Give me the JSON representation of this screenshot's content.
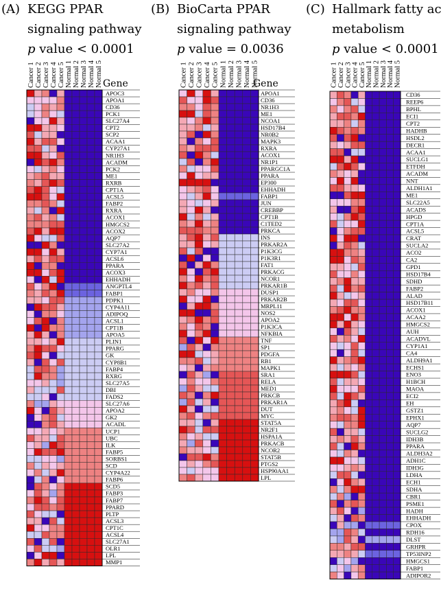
{
  "chart_data": [
    {
      "type": "heatmap",
      "panel": "(A)",
      "title_lines": [
        "KEGG PPAR",
        "signaling pathway"
      ],
      "pvalue_italic": "p",
      "pvalue_text": " value < 0.0001",
      "columns": [
        "Cancer 1",
        "Cancer 2",
        "Cancer 3",
        "Cancer 4",
        "Cancer 5",
        "Normal 1",
        "Normal 2",
        "Normal 3",
        "Normal 4",
        "Normal 5"
      ],
      "gene_header": "Gene",
      "genes": [
        "APOC3",
        "APOA1",
        "CD36",
        "PCK1",
        "SLC27A4",
        "CPT2",
        "SCP2",
        "ACAA1",
        "CYP27A1",
        "NR1H3",
        "ACADM",
        "PCK2",
        "ME1",
        "RXRB",
        "CPT1A",
        "ACSL5",
        "FABP2",
        "RXRA",
        "ACOX1",
        "HMGCS2",
        "ACOX2",
        "AQP7",
        "SLC27A2",
        "CYP7A1",
        "ACSL6",
        "PPARA",
        "ACOX3",
        "EHHADH",
        "ANGPTL4",
        "FABP1",
        "PDPK1",
        "CYP4A11",
        "ADIPOQ",
        "ACSL1",
        "CPT1B",
        "APOA5",
        "PLIN1",
        "PPARG",
        "GK",
        "CYP8B1",
        "FABP4",
        "RXRG",
        "SLC27A5",
        "DBI",
        "FADS2",
        "SLC27A6",
        "APOA2",
        "GK2",
        "ACADL",
        "UCP1",
        "UBC",
        "ILK",
        "FABP5",
        "SORBS1",
        "SCD",
        "CYP4A22",
        "FABP6",
        "SCD5",
        "FABP3",
        "FABP7",
        "PPARD",
        "PLTP",
        "ACSL3",
        "CPT1C",
        "ACSL4",
        "SLC27A1",
        "OLR1",
        "LPL",
        "MMP1"
      ],
      "normal_blocks": [
        {
          "from": 0,
          "to": 27,
          "level": 4
        },
        {
          "from": 28,
          "to": 29,
          "level": 3
        },
        {
          "from": 30,
          "to": 35,
          "level": 2
        },
        {
          "from": 36,
          "to": 44,
          "level": 1
        },
        {
          "from": 45,
          "to": 48,
          "level": 0
        },
        {
          "from": 49,
          "to": 56,
          "level": -2
        },
        {
          "from": 57,
          "to": 68,
          "level": -4
        }
      ],
      "scale": "red = high expression, blue = low expression"
    },
    {
      "type": "heatmap",
      "panel": "(B)",
      "title_lines": [
        "BioCarta PPAR",
        "signaling pathway"
      ],
      "pvalue_italic": "p",
      "pvalue_text": " value = 0.0036",
      "columns": [
        "Cancer 1",
        "Cancer 2",
        "Cancer 3",
        "Cancer 4",
        "Cancer 5",
        "Normal 1",
        "Normal 2",
        "Normal 3",
        "Normal 4",
        "Normal 5"
      ],
      "gene_header": "Gene",
      "genes": [
        "APOA1",
        "CD36",
        "NR1H3",
        "ME1",
        "NCOA1",
        "HSD17B4",
        "NR0B2",
        "MAPK3",
        "RXRA",
        "ACOX1",
        "NR1P1",
        "PPARGC1A",
        "PPARA",
        "EP300",
        "EHHADH",
        "FABP1",
        "JUN",
        "CREBBP",
        "CPT1B",
        "C1TED2",
        "PRKCA",
        "INS",
        "PRKAR2A",
        "P1K3CG",
        "P1K3R1",
        "FAT1",
        "PRKACG",
        "NCOR1",
        "PRKAR1B",
        "DUSP1",
        "PRKAR2B",
        "MRPL11",
        "NOS2",
        "APOA2",
        "P1K3CA",
        "NFKBIA",
        "TNF",
        "SP1",
        "PDGFA",
        "RB1",
        "MAPK1",
        "SRA1",
        "RELA",
        "MED1",
        "PRKCB",
        "PRKAR1A",
        "DUT",
        "MYC",
        "STAT5A",
        "NR2F1",
        "HSPA1A",
        "PRKACB",
        "NCOR2",
        "STAT5B",
        "PTGS2",
        "HSP90AA1",
        "LPL"
      ],
      "normal_blocks": [
        {
          "from": 0,
          "to": 14,
          "level": 4
        },
        {
          "from": 15,
          "to": 15,
          "level": 3
        },
        {
          "from": 16,
          "to": 20,
          "level": 4
        },
        {
          "from": 21,
          "to": 28,
          "level": 1
        },
        {
          "from": 29,
          "to": 35,
          "level": 0
        },
        {
          "from": 36,
          "to": 40,
          "level": -2
        },
        {
          "from": 41,
          "to": 47,
          "level": -3
        },
        {
          "from": 48,
          "to": 56,
          "level": -4
        }
      ],
      "scale": "red = high expression, blue = low expression"
    },
    {
      "type": "heatmap",
      "panel": "(C)",
      "title_lines": [
        "Hallmark fatty acid",
        "metabolism"
      ],
      "pvalue_italic": "p",
      "pvalue_text": " value < 0.0001",
      "columns": [
        "Cancer 1",
        "Cancer 2",
        "Cancer 3",
        "Cancer 4",
        "Cancer 5",
        "Normal 1",
        "Normal 2",
        "Normal 3",
        "Normal 4",
        "Normal 5"
      ],
      "gene_header": "Gene",
      "genes": [
        "CD36",
        "REEP6",
        "BPHL",
        "ECI1",
        "CPT2",
        "HADHB",
        "HSDL2",
        "DECR1",
        "ACAA1",
        "SUCLG1",
        "ETFDH",
        "ACADM",
        "NNT",
        "ALDH1A1",
        "ME1",
        "SLC22A5",
        "ACADS",
        "HPGD",
        "CPT1A",
        "ACSL5",
        "CRAT",
        "SUCLA2",
        "ACO2",
        "CA2",
        "GPD1",
        "HSD17B4",
        "SDHD",
        "FABP2",
        "ALAD",
        "HSD17B11",
        "ACOX1",
        "ACAA2",
        "HMGCS2",
        "AUH",
        "ACADVL",
        "CYP1A1",
        "CA4",
        "ALDH9A1",
        "ECHS1",
        "ENO3",
        "H1BCH",
        "MAOA",
        "ECI2",
        "EH",
        "GSTZ1",
        "EPHX1",
        "AQP7",
        "SUCLG2",
        "IDH3B",
        "PPARA",
        "ALDH3A2",
        "ADH1C",
        "IDH3G",
        "LDHA",
        "ECH1",
        "SDHA",
        "CBR1",
        "PSME1",
        "HADH",
        "EHHADH",
        "CPOX",
        "RDH16",
        "DLST",
        "GRHPR",
        "TP53INP2",
        "HMGCS1",
        "FABP1",
        "ADIPOR2"
      ],
      "normal_blocks": [
        {
          "from": 0,
          "to": 59,
          "level": 4
        },
        {
          "from": 60,
          "to": 60,
          "level": 3
        },
        {
          "from": 61,
          "to": 61,
          "level": 4
        },
        {
          "from": 62,
          "to": 62,
          "level": 2
        },
        {
          "from": 63,
          "to": 63,
          "level": 4
        },
        {
          "from": 64,
          "to": 64,
          "level": 3
        },
        {
          "from": 65,
          "to": 67,
          "level": 4
        }
      ],
      "scale": "red = high expression, blue = low expression"
    }
  ]
}
